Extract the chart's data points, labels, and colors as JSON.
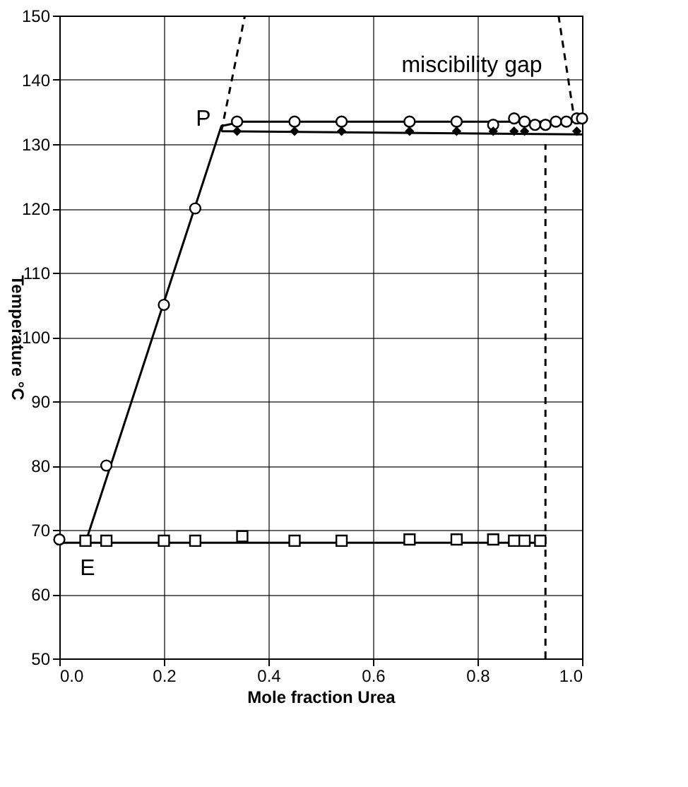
{
  "chart_data": {
    "type": "scatter",
    "xlabel": "Mole fraction  Urea",
    "ylabel": "Temperature  °C",
    "xlim": [
      0,
      1
    ],
    "ylim": [
      50,
      150
    ],
    "xticks": [
      {
        "value": 0,
        "label": "0.0"
      },
      {
        "value": 0.2,
        "label": "0.2"
      },
      {
        "value": 0.4,
        "label": "0.4"
      },
      {
        "value": 0.6,
        "label": "0.6"
      },
      {
        "value": 0.8,
        "label": "0.8"
      },
      {
        "value": 1,
        "label": "1.0"
      }
    ],
    "yticks": [
      50,
      60,
      70,
      80,
      90,
      100,
      110,
      120,
      130,
      140,
      150
    ],
    "grid": true,
    "series": [
      {
        "type": "line",
        "color": "#000000",
        "marker": "none",
        "line_style": "solid",
        "x": [
          0.05,
          0.31,
          0.35,
          1.0
        ],
        "values": [
          68,
          132.8,
          133.5,
          133.5
        ]
      },
      {
        "type": "line",
        "color": "#000000",
        "marker": "none",
        "line_style": "solid",
        "x": [
          0.31,
          1.0
        ],
        "values": [
          132,
          131.5
        ]
      },
      {
        "type": "line",
        "color": "#000000",
        "marker": "none",
        "line_style": "solid",
        "x": [
          0,
          0.93
        ],
        "values": [
          68,
          68
        ]
      },
      {
        "type": "line",
        "color": "#000000",
        "marker": "none",
        "line_style": "dashed",
        "x": [
          0.31,
          0.355
        ],
        "values": [
          132,
          150
        ]
      },
      {
        "type": "line",
        "color": "#000000",
        "marker": "none",
        "line_style": "dashed",
        "x": [
          0.955,
          0.985
        ],
        "values": [
          150,
          134
        ]
      },
      {
        "type": "line",
        "color": "#000000",
        "marker": "none",
        "line_style": "dashed",
        "x": [
          0.93,
          0.93
        ],
        "values": [
          50,
          130
        ]
      },
      {
        "color": "#000000",
        "marker": "circle",
        "x": [
          0,
          0.09,
          0.2,
          0.26,
          0.34,
          0.45,
          0.54,
          0.67,
          0.76,
          0.83,
          0.87,
          0.89,
          0.91,
          0.93,
          0.95,
          0.97,
          0.99,
          1.0
        ],
        "values": [
          68.5,
          80,
          105,
          120,
          133.5,
          133.5,
          133.5,
          133.5,
          133.5,
          133,
          134,
          133.5,
          133,
          133,
          133.5,
          133.5,
          134,
          134
        ]
      },
      {
        "color": "#000000",
        "marker": "diamond",
        "x": [
          0.34,
          0.45,
          0.54,
          0.67,
          0.76,
          0.83,
          0.87,
          0.89,
          0.99
        ],
        "values": [
          132,
          132,
          132,
          132,
          132,
          132,
          132,
          132,
          132
        ]
      },
      {
        "color": "#000000",
        "marker": "square",
        "x": [
          0.05,
          0.09,
          0.2,
          0.26,
          0.35,
          0.45,
          0.54,
          0.67,
          0.76,
          0.83,
          0.87,
          0.89,
          0.92
        ],
        "values": [
          68.3,
          68.3,
          68.3,
          68.3,
          69,
          68.3,
          68.3,
          68.5,
          68.5,
          68.5,
          68.3,
          68.3,
          68.3
        ]
      }
    ],
    "annotations": [
      "miscibility gap",
      "P",
      "E"
    ]
  }
}
